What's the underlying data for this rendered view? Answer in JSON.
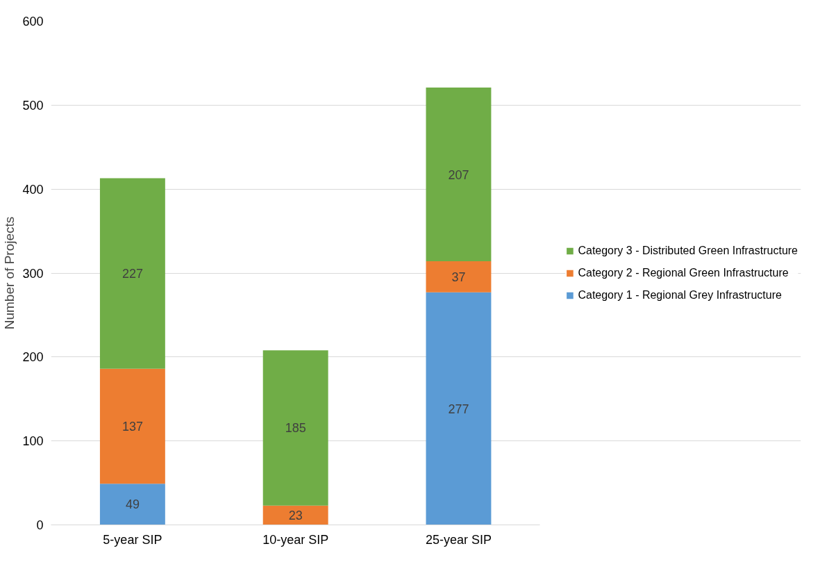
{
  "chart_data": {
    "type": "bar",
    "stacked": true,
    "categories": [
      "5-year SIP",
      "10-year SIP",
      "25-year SIP"
    ],
    "ylabel": "Number of Projects",
    "series": [
      {
        "name": "Category 1 - Regional Grey Infrastructure",
        "color": "#5b9bd5",
        "values": [
          49,
          null,
          277
        ]
      },
      {
        "name": "Category 2 - Regional Green Infrastructure",
        "color": "#ed7d31",
        "values": [
          137,
          23,
          37
        ]
      },
      {
        "name": "Category 3 - Distributed Green Infrastructure",
        "color": "#70ad47",
        "values": [
          227,
          185,
          207
        ]
      }
    ],
    "ylim": [
      0,
      600
    ],
    "yticks": [
      0,
      100,
      200,
      300,
      400,
      500,
      600
    ],
    "grid": "y",
    "legend": "right",
    "data_labels": true
  }
}
